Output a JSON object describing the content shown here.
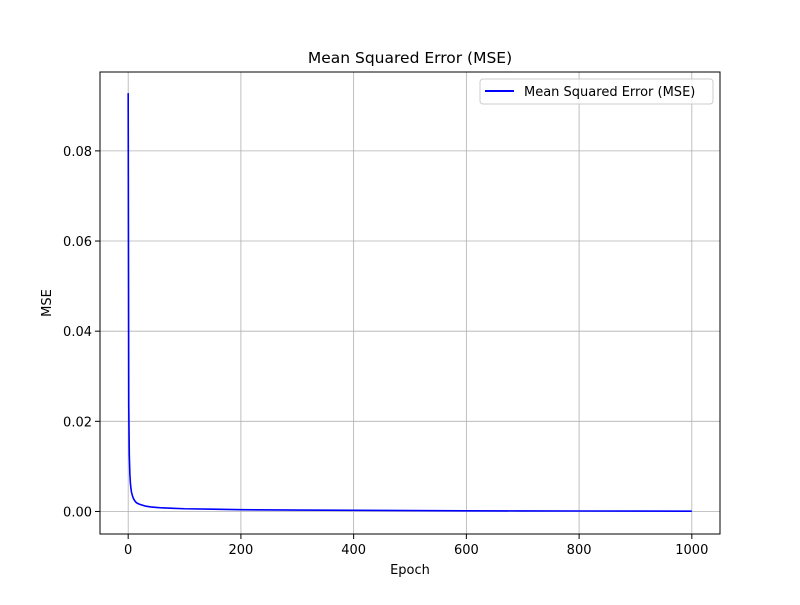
{
  "chart_data": {
    "type": "line",
    "title": "Mean Squared Error (MSE)",
    "xlabel": "Epoch",
    "ylabel": "MSE",
    "xlim": [
      -50,
      1050
    ],
    "ylim": [
      -0.005,
      0.0975
    ],
    "xticks": [
      0,
      200,
      400,
      600,
      800,
      1000
    ],
    "xtick_labels": [
      "0",
      "200",
      "400",
      "600",
      "800",
      "1000"
    ],
    "yticks": [
      0.0,
      0.02,
      0.04,
      0.06,
      0.08
    ],
    "ytick_labels": [
      "0.00",
      "0.02",
      "0.04",
      "0.06",
      "0.08"
    ],
    "grid": true,
    "legend_position": "top-right",
    "series": [
      {
        "name": "Mean Squared Error (MSE)",
        "color": "#0000ff",
        "x": [
          0,
          1,
          2,
          3,
          4,
          5,
          6,
          8,
          10,
          12,
          15,
          20,
          25,
          30,
          40,
          50,
          60,
          80,
          100,
          150,
          200,
          300,
          400,
          500,
          600,
          700,
          800,
          900,
          1000
        ],
        "y": [
          0.0928,
          0.0235,
          0.0125,
          0.0082,
          0.0062,
          0.005,
          0.0042,
          0.0033,
          0.0027,
          0.0023,
          0.0019,
          0.0016,
          0.0014,
          0.0012,
          0.001,
          0.0009,
          0.0008,
          0.0007,
          0.0006,
          0.0005,
          0.0004,
          0.0003,
          0.00025,
          0.0002,
          0.00015,
          0.00012,
          0.0001,
          8e-05,
          6e-05
        ]
      }
    ]
  }
}
